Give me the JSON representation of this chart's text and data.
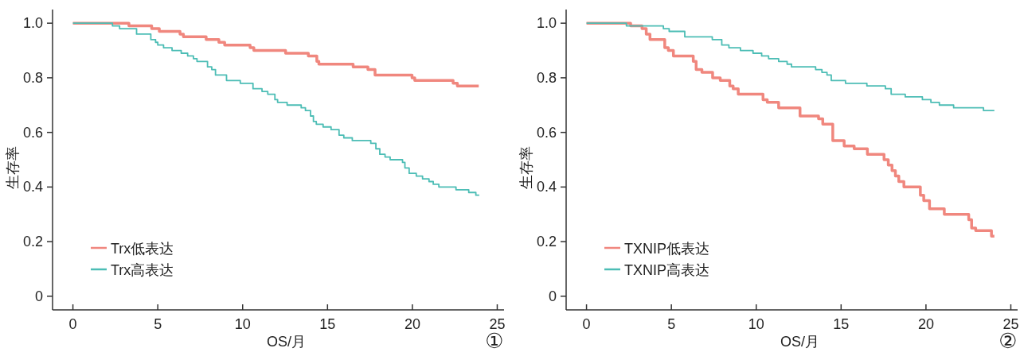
{
  "chart_data": [
    {
      "type": "step",
      "xlabel": "OS/月",
      "ylabel": "生存率",
      "xlim": [
        -1.2,
        25.4
      ],
      "ylim": [
        -0.05,
        1.05
      ],
      "xticks": [
        0,
        5,
        10,
        15,
        20,
        25
      ],
      "yticks": [
        0,
        0.2,
        0.4,
        0.6,
        0.8,
        {
          "value": 1,
          "label": "1.0"
        }
      ],
      "legend": "bottom left",
      "annotations": [
        "①"
      ],
      "series": [
        {
          "name": "Trx低表达",
          "color": "#f0877e",
          "x": [
            0,
            3.3,
            3.67,
            4.64,
            5.09,
            6.31,
            6.51,
            7.43,
            7.85,
            8.6,
            8.94,
            10.44,
            10.66,
            11.28,
            12.53,
            13.87,
            14.37,
            14.49,
            16.51,
            17.38,
            17.8,
            18.55,
            19.98,
            20.14,
            22.4,
            22.65,
            22.87,
            23.91
          ],
          "values": [
            1.0,
            0.99,
            0.99,
            0.98,
            0.97,
            0.96,
            0.95,
            0.95,
            0.94,
            0.93,
            0.92,
            0.91,
            0.9,
            0.9,
            0.89,
            0.88,
            0.86,
            0.85,
            0.84,
            0.83,
            0.81,
            0.81,
            0.8,
            0.79,
            0.78,
            0.77,
            0.77,
            0.77
          ]
        },
        {
          "name": "Trx高表达",
          "color": "#4cbdb5",
          "x": [
            0,
            2.33,
            2.75,
            3.75,
            4.59,
            4.87,
            5.0,
            5.34,
            5.84,
            6.38,
            6.76,
            7.1,
            7.31,
            7.93,
            8.18,
            8.4,
            9.05,
            9.86,
            10.61,
            11.14,
            11.48,
            11.9,
            12.06,
            12.62,
            13.45,
            13.7,
            14.0,
            14.17,
            14.34,
            14.74,
            15.21,
            15.68,
            15.96,
            16.46,
            17.55,
            17.85,
            18.08,
            18.39,
            18.69,
            19.42,
            19.56,
            19.81,
            20.23,
            20.6,
            20.98,
            21.23,
            21.56,
            22.57,
            23.32,
            23.74,
            23.94
          ],
          "values": [
            1.0,
            0.99,
            0.98,
            0.96,
            0.94,
            0.93,
            0.92,
            0.91,
            0.9,
            0.89,
            0.88,
            0.87,
            0.86,
            0.84,
            0.83,
            0.81,
            0.79,
            0.78,
            0.76,
            0.75,
            0.74,
            0.72,
            0.71,
            0.7,
            0.69,
            0.68,
            0.66,
            0.64,
            0.63,
            0.62,
            0.61,
            0.59,
            0.58,
            0.57,
            0.56,
            0.54,
            0.52,
            0.51,
            0.5,
            0.49,
            0.47,
            0.45,
            0.44,
            0.43,
            0.42,
            0.41,
            0.4,
            0.39,
            0.38,
            0.37,
            0.37
          ]
        }
      ]
    },
    {
      "type": "step",
      "xlabel": "OS/月",
      "ylabel": "生存率",
      "xlim": [
        -1.2,
        25.4
      ],
      "ylim": [
        -0.05,
        1.05
      ],
      "xticks": [
        0,
        5,
        10,
        15,
        20,
        25
      ],
      "yticks": [
        0,
        0.2,
        0.4,
        0.6,
        0.8,
        {
          "value": 1,
          "label": "1.0"
        }
      ],
      "legend": "bottom left",
      "annotations": [
        "②"
      ],
      "series": [
        {
          "name": "TXNIP低表达",
          "color": "#f0877e",
          "x": [
            0,
            2.6,
            3.27,
            3.52,
            3.74,
            4.61,
            4.82,
            5.12,
            6.29,
            6.46,
            6.8,
            7.43,
            7.88,
            8.44,
            8.64,
            8.94,
            10.4,
            10.65,
            11.32,
            12.58,
            13.67,
            13.92,
            14.51,
            15.18,
            15.77,
            16.55,
            17.53,
            17.78,
            18.0,
            18.2,
            18.4,
            18.7,
            19.67,
            19.87,
            20.21,
            21.08,
            22.52,
            22.69,
            22.93,
            23.86,
            24.03
          ],
          "values": [
            1.0,
            0.99,
            0.98,
            0.96,
            0.94,
            0.91,
            0.9,
            0.88,
            0.86,
            0.83,
            0.82,
            0.8,
            0.79,
            0.77,
            0.76,
            0.74,
            0.72,
            0.71,
            0.69,
            0.66,
            0.65,
            0.63,
            0.57,
            0.55,
            0.54,
            0.52,
            0.5,
            0.48,
            0.46,
            0.44,
            0.42,
            0.4,
            0.37,
            0.35,
            0.32,
            0.3,
            0.28,
            0.25,
            0.24,
            0.22,
            0.22
          ]
        },
        {
          "name": "TXNIP高表达",
          "color": "#4cbdb5",
          "x": [
            0,
            2.35,
            2.68,
            3.69,
            4.53,
            4.87,
            5.15,
            5.79,
            7.12,
            7.41,
            7.97,
            8.39,
            9.07,
            9.81,
            10.32,
            10.73,
            11.32,
            11.82,
            12.08,
            13.5,
            13.87,
            14.17,
            14.42,
            15.26,
            15.77,
            16.52,
            17.61,
            17.95,
            18.78,
            19.37,
            19.79,
            20.29,
            20.79,
            21.63,
            23.39,
            23.81,
            24.03
          ],
          "values": [
            1.0,
            0.99,
            0.99,
            0.99,
            0.98,
            0.97,
            0.97,
            0.95,
            0.95,
            0.94,
            0.92,
            0.91,
            0.9,
            0.89,
            0.88,
            0.87,
            0.86,
            0.85,
            0.84,
            0.83,
            0.82,
            0.81,
            0.79,
            0.78,
            0.78,
            0.77,
            0.76,
            0.74,
            0.73,
            0.73,
            0.72,
            0.71,
            0.7,
            0.69,
            0.68,
            0.68,
            0.68
          ]
        }
      ]
    }
  ]
}
